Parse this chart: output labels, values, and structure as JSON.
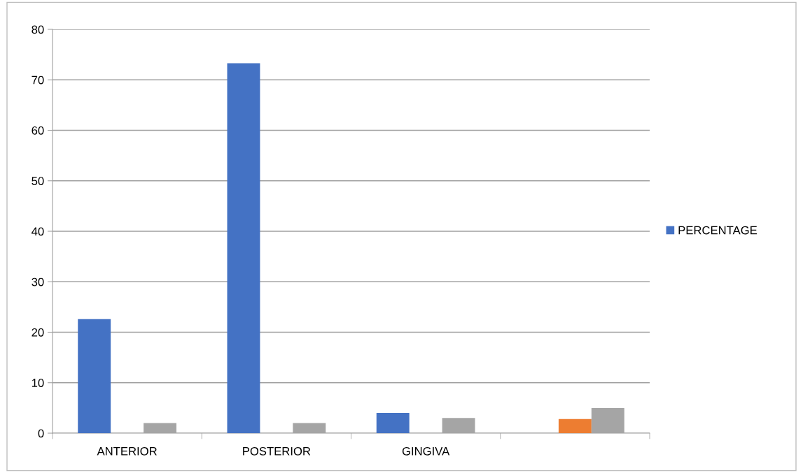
{
  "chart_data": {
    "type": "bar",
    "categories": [
      "ANTERIOR",
      "POSTERIOR",
      "GINGIVA",
      null
    ],
    "series": [
      {
        "name": "PERCENTAGE",
        "color": "#4472c4",
        "values": [
          22.6,
          73.3,
          4,
          null
        ]
      },
      {
        "color": "#ed7d31",
        "values": [
          null,
          null,
          null,
          2.8
        ]
      },
      {
        "color": "#a5a5a5",
        "values": [
          2,
          2,
          3,
          5
        ]
      }
    ],
    "ylim": [
      0,
      80
    ],
    "yticks": [
      0,
      10,
      20,
      30,
      40,
      50,
      60,
      70,
      80
    ],
    "grid": "y",
    "legend": "right"
  }
}
